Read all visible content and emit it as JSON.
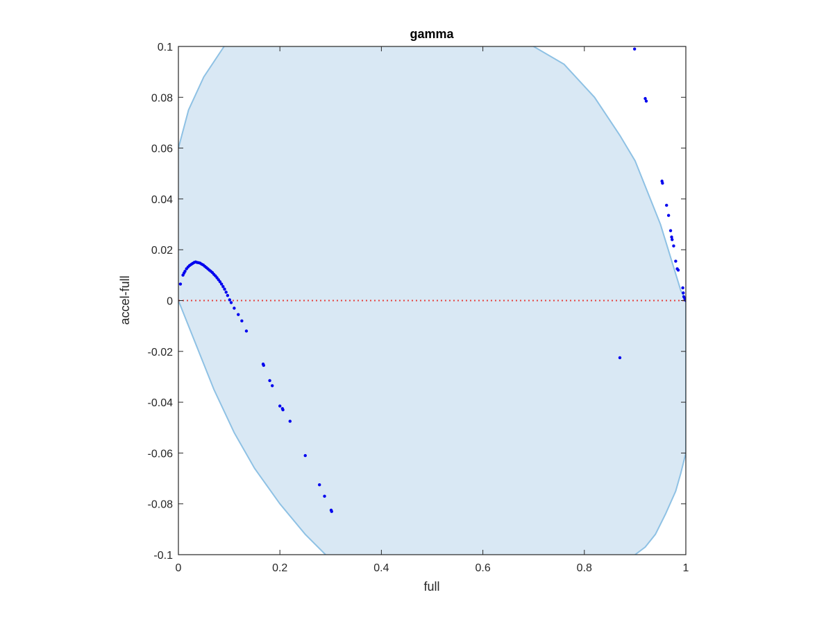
{
  "chart_data": {
    "type": "scatter",
    "title": "gamma",
    "xlabel": "full",
    "ylabel": "accel-full",
    "xlim": [
      0,
      1
    ],
    "ylim": [
      -0.1,
      0.1
    ],
    "xticks": [
      0,
      0.2,
      0.4,
      0.6,
      0.8,
      1
    ],
    "xtick_labels": [
      "0",
      "0.2",
      "0.4",
      "0.6",
      "0.8",
      "1"
    ],
    "yticks": [
      -0.1,
      -0.08,
      -0.06,
      -0.04,
      -0.02,
      0,
      0.02,
      0.04,
      0.06,
      0.08,
      0.1
    ],
    "ytick_labels": [
      "-0.1",
      "-0.08",
      "-0.06",
      "-0.04",
      "-0.02",
      "0",
      "0.02",
      "0.04",
      "0.06",
      "0.08",
      "0.1"
    ],
    "grid": false,
    "reference_line": {
      "y": 0,
      "color": "#e8403c",
      "style": "dotted"
    },
    "shaded_region": {
      "fill": "#d9e8f4",
      "edge": "#8ec1e4",
      "boundary_top": [
        [
          0,
          0.06
        ],
        [
          0.02,
          0.075
        ],
        [
          0.05,
          0.088
        ],
        [
          0.09,
          0.1
        ]
      ],
      "boundary_right_upper": [
        [
          0.7,
          0.1
        ],
        [
          0.76,
          0.093
        ],
        [
          0.82,
          0.08
        ],
        [
          0.87,
          0.065
        ],
        [
          0.9,
          0.055
        ],
        [
          0.93,
          0.04
        ],
        [
          0.95,
          0.03
        ],
        [
          0.97,
          0.017
        ],
        [
          0.99,
          0.004
        ],
        [
          1.0,
          0.0
        ]
      ],
      "boundary_right_lower": [
        [
          1.0,
          -0.06
        ],
        [
          0.99,
          -0.068
        ],
        [
          0.98,
          -0.075
        ],
        [
          0.96,
          -0.084
        ],
        [
          0.94,
          -0.092
        ],
        [
          0.92,
          -0.097
        ],
        [
          0.9,
          -0.1
        ]
      ],
      "boundary_left_lower": [
        [
          0.29,
          -0.1
        ],
        [
          0.25,
          -0.092
        ],
        [
          0.2,
          -0.08
        ],
        [
          0.15,
          -0.066
        ],
        [
          0.11,
          -0.052
        ],
        [
          0.07,
          -0.035
        ],
        [
          0.04,
          -0.02
        ],
        [
          0.02,
          -0.01
        ],
        [
          0,
          0
        ]
      ]
    },
    "series": [
      {
        "color": "#0000ee",
        "points": [
          [
            0.004,
            0.0065
          ],
          [
            0.009,
            0.01
          ],
          [
            0.011,
            0.0108
          ],
          [
            0.013,
            0.0115
          ],
          [
            0.016,
            0.0125
          ],
          [
            0.019,
            0.0132
          ],
          [
            0.022,
            0.0138
          ],
          [
            0.025,
            0.0142
          ],
          [
            0.028,
            0.0146
          ],
          [
            0.031,
            0.015
          ],
          [
            0.034,
            0.0152
          ],
          [
            0.037,
            0.015
          ],
          [
            0.04,
            0.0149
          ],
          [
            0.043,
            0.0147
          ],
          [
            0.046,
            0.0143
          ],
          [
            0.049,
            0.014
          ],
          [
            0.052,
            0.0135
          ],
          [
            0.055,
            0.013
          ],
          [
            0.058,
            0.0125
          ],
          [
            0.061,
            0.012
          ],
          [
            0.064,
            0.0115
          ],
          [
            0.067,
            0.011
          ],
          [
            0.07,
            0.0103
          ],
          [
            0.073,
            0.0097
          ],
          [
            0.076,
            0.009
          ],
          [
            0.079,
            0.0082
          ],
          [
            0.082,
            0.0074
          ],
          [
            0.085,
            0.0065
          ],
          [
            0.088,
            0.0055
          ],
          [
            0.091,
            0.0045
          ],
          [
            0.094,
            0.0033
          ],
          [
            0.097,
            0.002
          ],
          [
            0.101,
            0.0003
          ],
          [
            0.104,
            -0.0008
          ],
          [
            0.11,
            -0.003
          ],
          [
            0.118,
            -0.0055
          ],
          [
            0.125,
            -0.008
          ],
          [
            0.134,
            -0.012
          ],
          [
            0.167,
            -0.025
          ],
          [
            0.168,
            -0.0255
          ],
          [
            0.18,
            -0.0315
          ],
          [
            0.185,
            -0.0335
          ],
          [
            0.2,
            -0.0415
          ],
          [
            0.205,
            -0.0425
          ],
          [
            0.206,
            -0.043
          ],
          [
            0.22,
            -0.0475
          ],
          [
            0.25,
            -0.061
          ],
          [
            0.278,
            -0.0725
          ],
          [
            0.288,
            -0.077
          ],
          [
            0.301,
            -0.0825
          ],
          [
            0.302,
            -0.083
          ],
          [
            0.87,
            -0.0225
          ],
          [
            0.899,
            0.099
          ],
          [
            0.92,
            0.0795
          ],
          [
            0.922,
            0.0785
          ],
          [
            0.953,
            0.047
          ],
          [
            0.954,
            0.0462
          ],
          [
            0.962,
            0.0375
          ],
          [
            0.966,
            0.0335
          ],
          [
            0.97,
            0.0275
          ],
          [
            0.972,
            0.025
          ],
          [
            0.973,
            0.024
          ],
          [
            0.976,
            0.0215
          ],
          [
            0.98,
            0.0155
          ],
          [
            0.983,
            0.0125
          ],
          [
            0.985,
            0.012
          ],
          [
            0.994,
            0.005
          ],
          [
            0.995,
            0.003
          ],
          [
            0.996,
            0.0015
          ],
          [
            0.998,
            0.0008
          ],
          [
            0.999,
            0.0002
          ],
          [
            1.0,
            0.0
          ]
        ]
      }
    ]
  }
}
